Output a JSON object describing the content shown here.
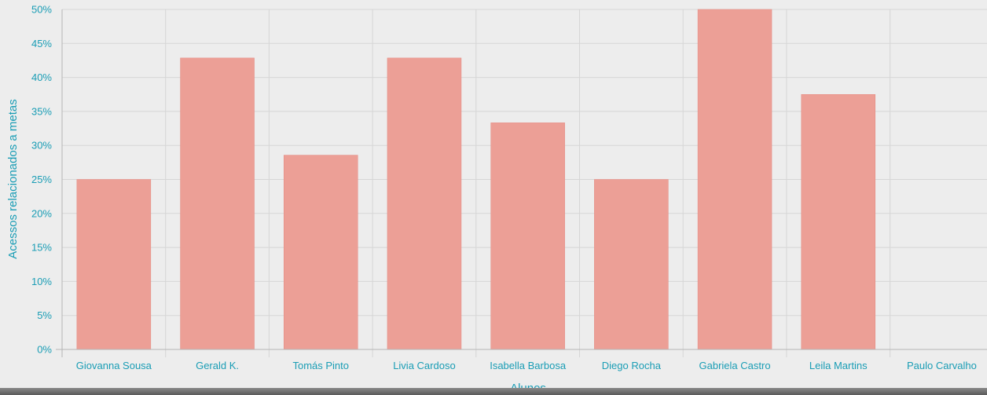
{
  "chart_data": {
    "type": "bar",
    "categories": [
      "Giovanna Sousa",
      "Gerald K.",
      "Tomás Pinto",
      "Livia Cardoso",
      "Isabella Barbosa",
      "Diego Rocha",
      "Gabriela Castro",
      "Leila Martins",
      "Paulo Carvalho"
    ],
    "values": [
      25,
      42.86,
      28.57,
      42.86,
      33.33,
      25,
      50,
      37.5,
      0
    ],
    "xlabel": "Alunos",
    "ylabel": "Acessos relacionados a metas",
    "ylim": [
      0,
      50
    ],
    "yticks": [
      "0%",
      "5%",
      "10%",
      "15%",
      "20%",
      "25%",
      "30%",
      "35%",
      "40%",
      "45%",
      "50%"
    ],
    "grid": true,
    "colors": {
      "bar": "#ec9f96",
      "text": "#1a9db5",
      "background": "#ededed"
    }
  }
}
